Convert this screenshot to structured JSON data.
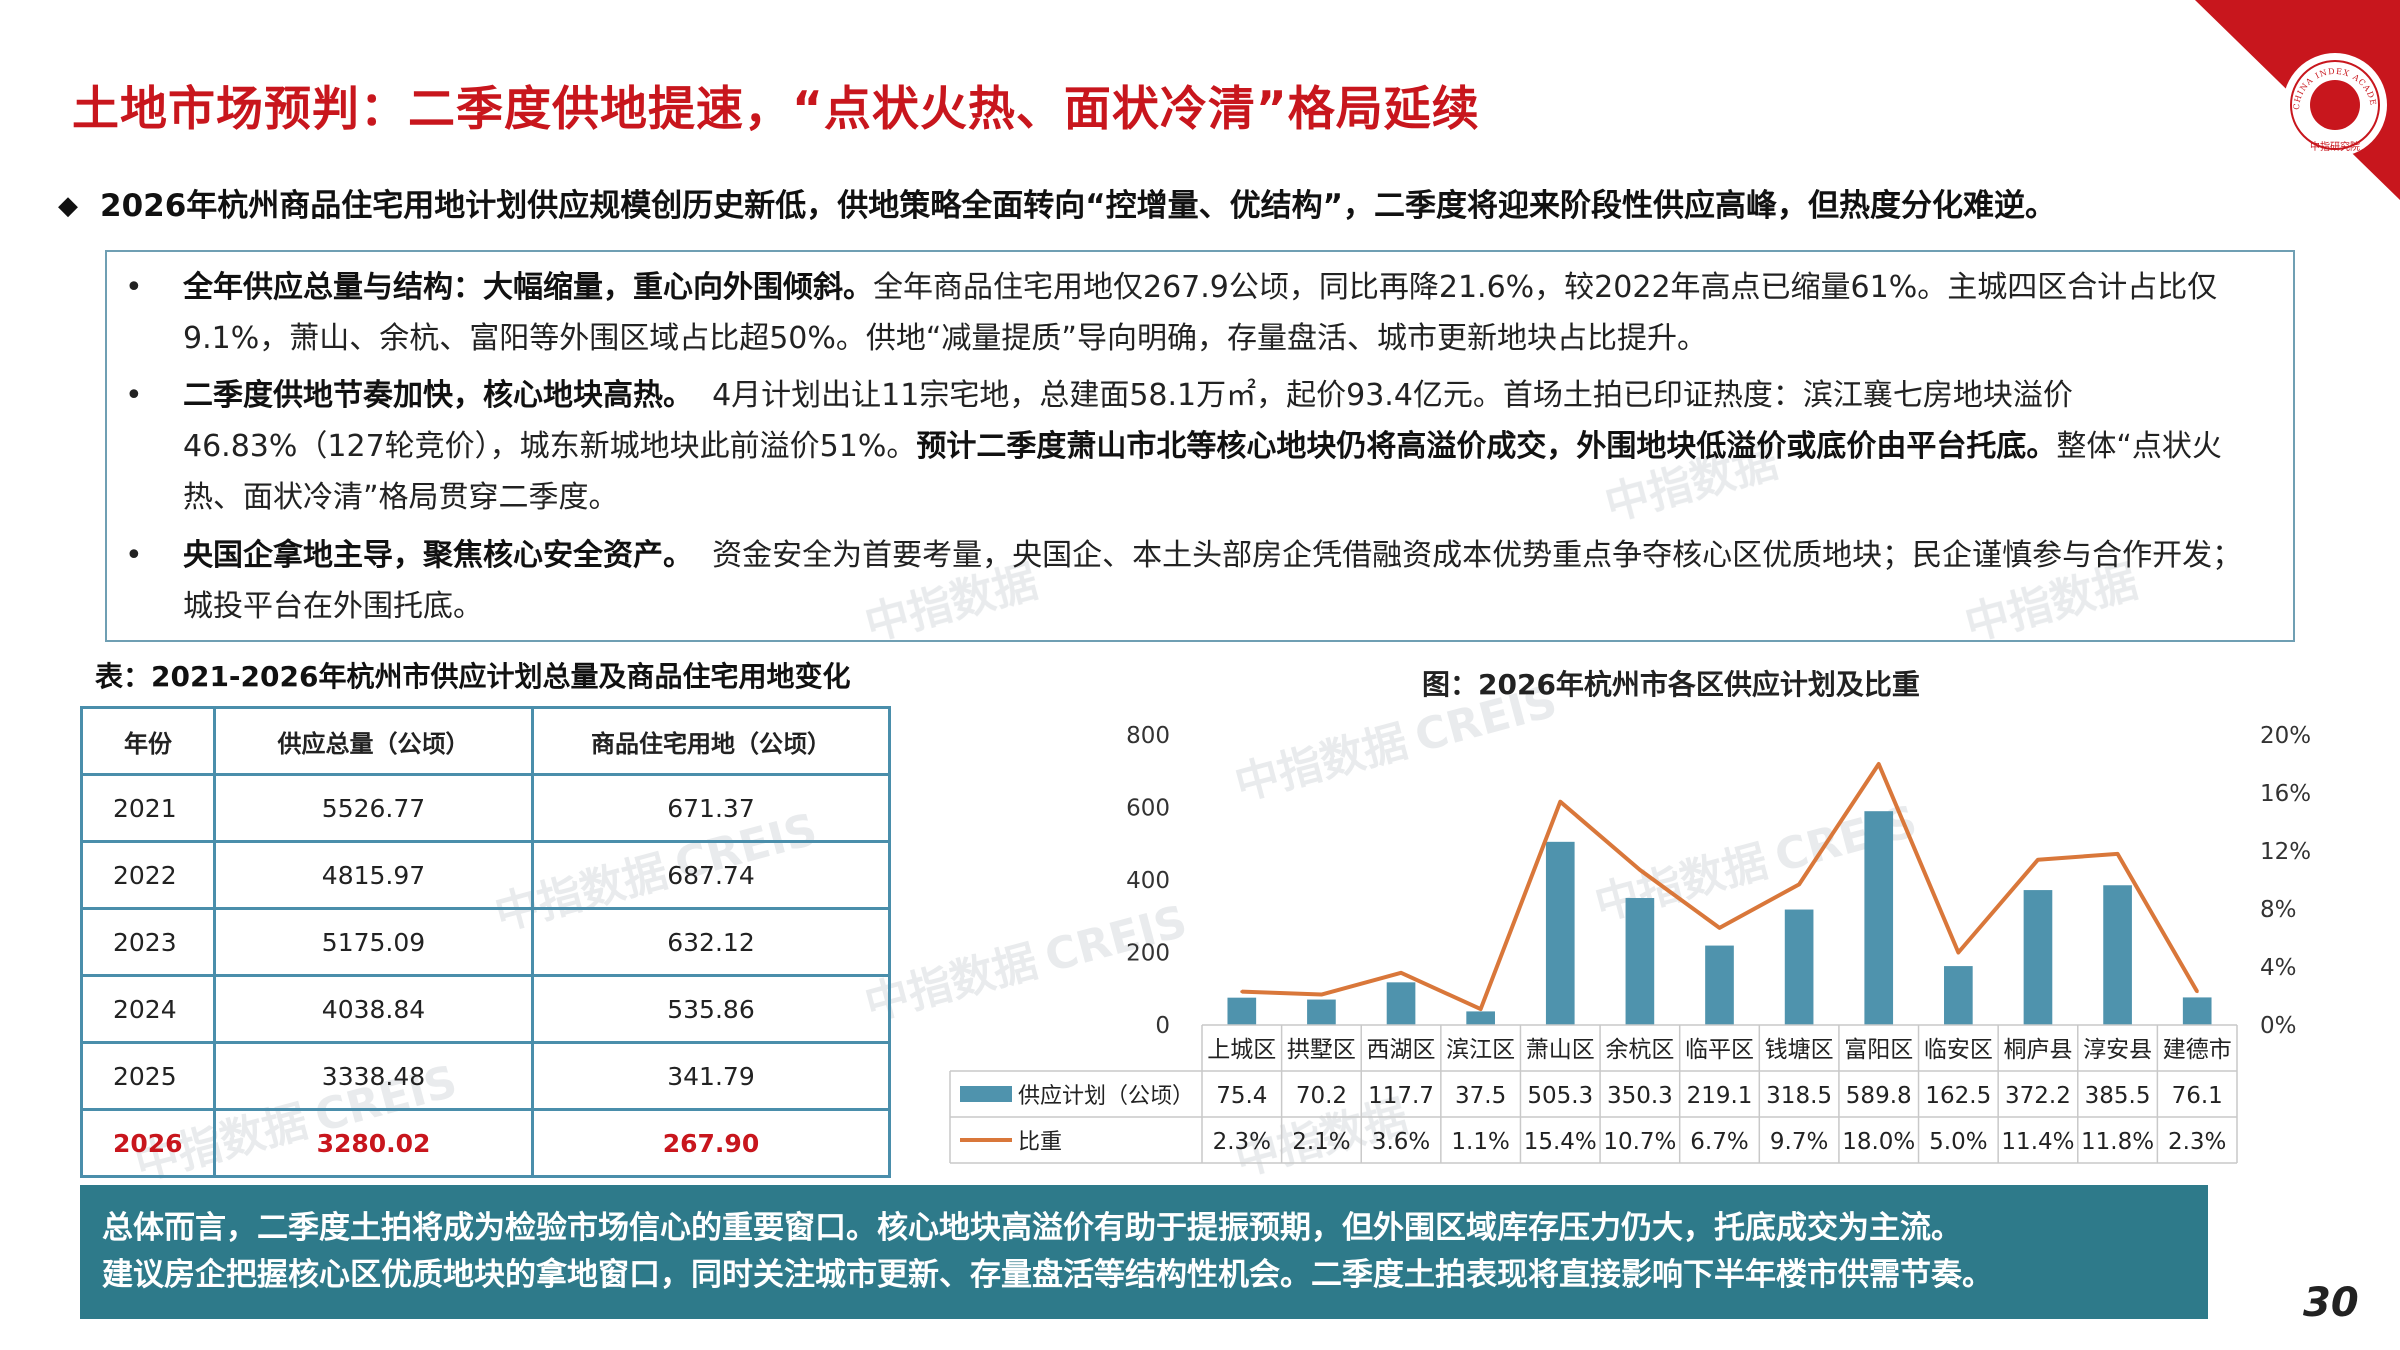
{
  "header": {
    "title": "土地市场预判：二季度供地提速，“点状火热、面状冷清”格局延续",
    "logo_text": "中指研究院",
    "logo_ring_text": "CHINA INDEX ACADEMY"
  },
  "summary": {
    "marker": "◆",
    "text": "2026年杭州商品住宅用地计划供应规模创历史新低，供地策略全面转向“控增量、优结构”，二季度将迎来阶段性供应高峰，但热度分化难逆。"
  },
  "bullets": [
    {
      "marker": "•",
      "heading": "全年供应总量与结构：大幅缩量，重心向外围倾斜。",
      "body": "全年商品住宅用地仅267.9公顷，同比再降21.6%，较2022年高点已缩量61%。主城四区合计占比仅9.1%，萧山、余杭、富阳等外围区域占比超50%。供地“减量提质”导向明确，存量盘活、城市更新地块占比提升。"
    },
    {
      "marker": "•",
      "heading": "二季度供地节奏加快，核心地块高热。",
      "body": "4月计划出让11宗宅地，总建面58.1万㎡，起价93.4亿元。首场土拍已印证热度：滨江襄七房地块溢价46.83%（127轮竞价），城东新城地块此前溢价51%。",
      "emphasis": "预计二季度萧山市北等核心地块仍将高溢价成交，外围地块低溢价或底价由平台托底。",
      "tail": "整体“点状火热、面状冷清”格局贯穿二季度。"
    },
    {
      "marker": "•",
      "heading": "央国企拿地主导，聚焦核心安全资产。",
      "body": "资金安全为首要考量，央国企、本土头部房企凭借融资成本优势重点争夺核心区优质地块；民企谨慎参与合作开发；城投平台在外围托底。"
    }
  ],
  "table": {
    "title": "表：2021-2026年杭州市供应计划总量及商品住宅用地变化",
    "headers": [
      "年份",
      "供应总量（公顷）",
      "商品住宅用地（公顷）"
    ],
    "rows": [
      [
        "2021",
        "5526.77",
        "671.37"
      ],
      [
        "2022",
        "4815.97",
        "687.74"
      ],
      [
        "2023",
        "5175.09",
        "632.12"
      ],
      [
        "2024",
        "4038.84",
        "535.86"
      ],
      [
        "2025",
        "3338.48",
        "341.79"
      ],
      [
        "2026",
        "3280.02",
        "267.90"
      ]
    ],
    "highlight_color": "#c8161d"
  },
  "chart_data": {
    "type": "bar",
    "title": "图：2026年杭州市各区供应计划及比重",
    "categories": [
      "上城区",
      "拱墅区",
      "西湖区",
      "滨江区",
      "萧山区",
      "余杭区",
      "临平区",
      "钱塘区",
      "富阳区",
      "临安区",
      "桐庐县",
      "淳安县",
      "建德市"
    ],
    "series": [
      {
        "name": "供应计划（公顷）",
        "type": "bar",
        "axis": "left",
        "color": "#4f93ad",
        "values": [
          75.4,
          70.2,
          117.7,
          37.5,
          505.3,
          350.3,
          219.1,
          318.5,
          589.8,
          162.5,
          372.2,
          385.5,
          76.1
        ],
        "labels": [
          "75.4",
          "70.2",
          "117.7",
          "37.5",
          "505.3",
          "350.3",
          "219.1",
          "318.5",
          "589.8",
          "162.5",
          "372.2",
          "385.5",
          "76.1"
        ]
      },
      {
        "name": "比重",
        "type": "line",
        "axis": "right",
        "color": "#d9773a",
        "values": [
          2.3,
          2.1,
          3.6,
          1.1,
          15.4,
          10.7,
          6.7,
          9.7,
          18.0,
          5.0,
          11.4,
          11.8,
          2.3
        ],
        "labels": [
          "2.3%",
          "2.1%",
          "3.6%",
          "1.1%",
          "15.4%",
          "10.7%",
          "6.7%",
          "9.7%",
          "18.0%",
          "5.0%",
          "11.4%",
          "11.8%",
          "2.3%"
        ]
      }
    ],
    "y_left": {
      "ticks": [
        "800",
        "600",
        "400",
        "200",
        "0"
      ],
      "range": [
        0,
        800
      ]
    },
    "y_right": {
      "ticks": [
        "20%",
        "16%",
        "12%",
        "8%",
        "4%",
        "0%"
      ],
      "range": [
        0,
        20
      ]
    },
    "data_table": true,
    "legend": "data-table"
  },
  "conclusion": {
    "line1": "总体而言，二季度土拍将成为检验市场信心的重要窗口。核心地块高溢价有助于提振预期，但外围区域库存压力仍大，托底成交为主流。",
    "line2": "建议房企把握核心区优质地块的拿地窗口，同时关注城市更新、存量盘活等结构性机会。二季度土拍表现将直接影响下半年楼市供需节奏。"
  },
  "page_number": "30",
  "watermarks": [
    "中指数据",
    "CREIS"
  ],
  "colors": {
    "title_red": "#c8161d",
    "box_border": "#6f9fb3",
    "table_border": "#4a8eab",
    "conclusion_bg": "#2e7a8a"
  }
}
